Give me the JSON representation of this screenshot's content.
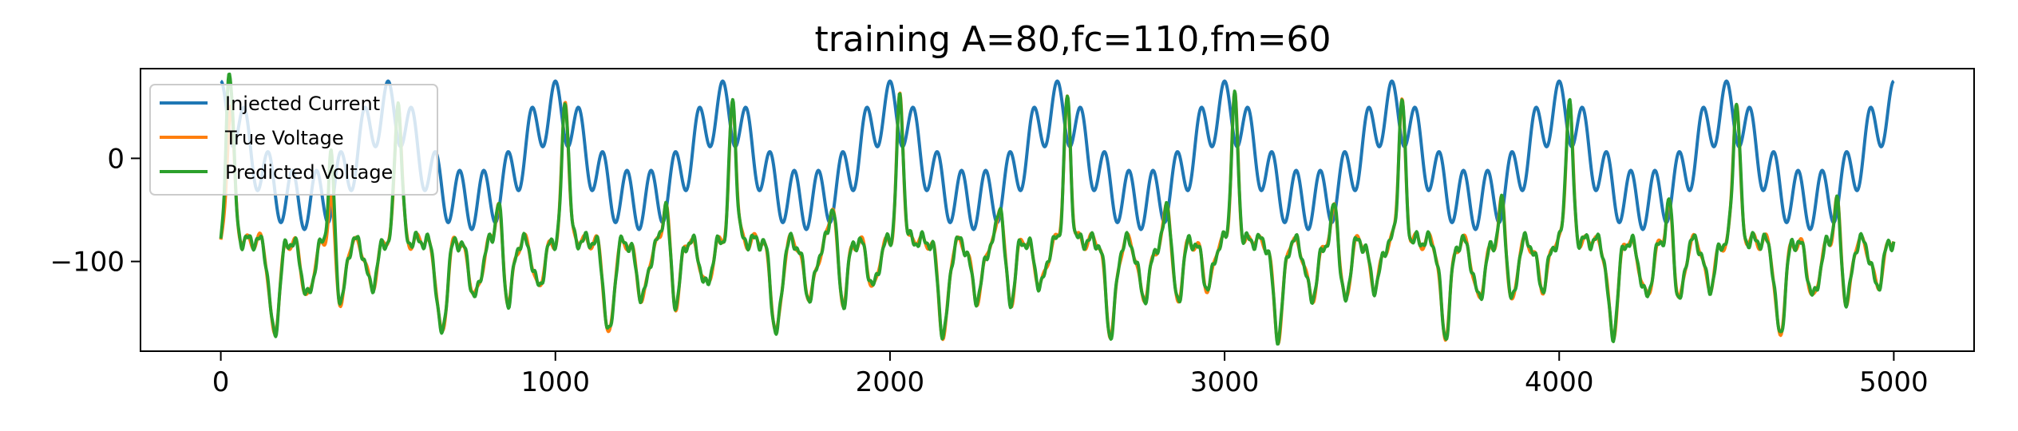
{
  "chart_data": {
    "type": "line",
    "title": "training A=80,fc=110,fm=60",
    "xlabel": "",
    "ylabel": "",
    "xlim": [
      -240,
      5240
    ],
    "ylim": [
      -187,
      87
    ],
    "x_ticks": [
      0,
      1000,
      2000,
      3000,
      4000,
      5000
    ],
    "x_tick_labels": [
      "0",
      "1000",
      "2000",
      "3000",
      "4000",
      "5000"
    ],
    "y_ticks": [
      0,
      -100
    ],
    "y_tick_labels": [
      "0",
      "−100"
    ],
    "grid": false,
    "legend_position": "upper-left",
    "x_domain": [
      0,
      5000
    ],
    "series": [
      {
        "name": "Injected Current",
        "color": "#1f77b4",
        "period": 500,
        "peak_max": 75,
        "trough_min": -78,
        "description_values": {
          "max": 75,
          "min": -78
        }
      },
      {
        "name": "True Voltage",
        "color": "#ff7f0e",
        "period": 500,
        "peak_max": 57,
        "trough_min": -172
      },
      {
        "name": "Predicted Voltage",
        "color": "#2ca02c",
        "period": 500,
        "peak_max": 57,
        "trough_min": -172
      }
    ]
  }
}
